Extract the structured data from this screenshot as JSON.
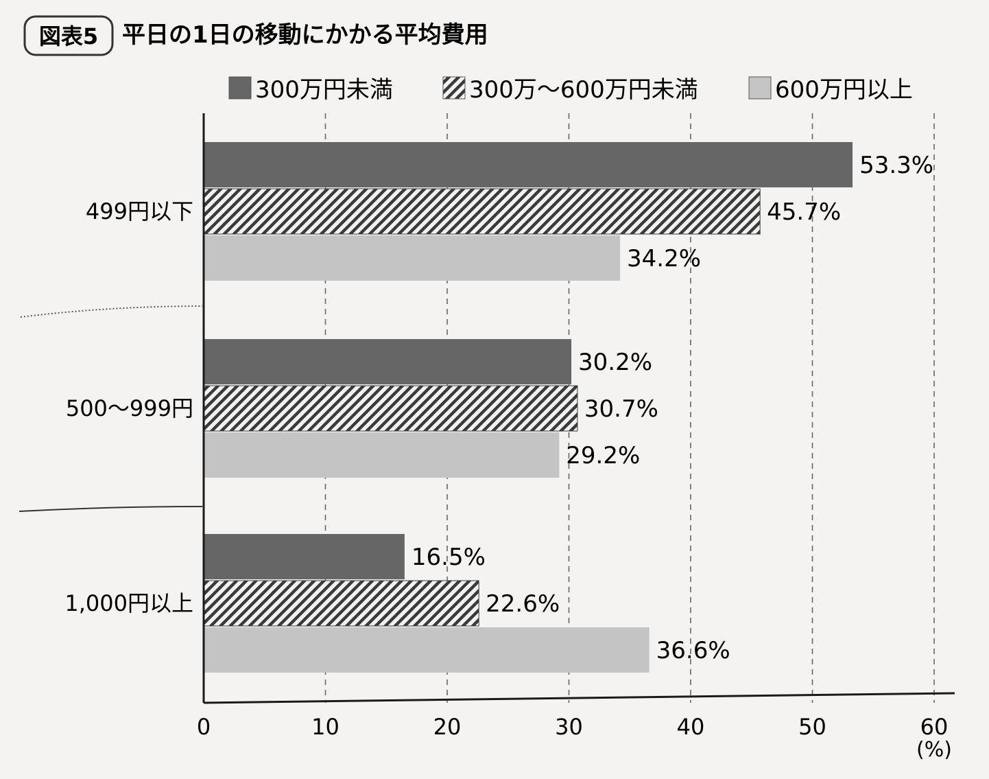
{
  "figure": {
    "badge": "図表5",
    "title": "平日の1日の移動にかかる平均費用"
  },
  "chart_data": {
    "type": "bar",
    "orientation": "horizontal",
    "title": "平日の1日の移動にかかる平均費用",
    "categories": [
      "499円以下",
      "500～999円",
      "1,000円以上"
    ],
    "series": [
      {
        "name": "300万円未満",
        "values": [
          53.3,
          30.2,
          16.5
        ],
        "labels": [
          "53.3%",
          "30.2%",
          "16.5%"
        ],
        "pattern": "solid",
        "color": "#666666"
      },
      {
        "name": "300万～600万円未満",
        "values": [
          45.7,
          30.7,
          22.6
        ],
        "labels": [
          "45.7%",
          "30.7%",
          "22.6%"
        ],
        "pattern": "hatch",
        "color": "#3a3a3a"
      },
      {
        "name": "600万円以上",
        "values": [
          34.2,
          29.2,
          36.6
        ],
        "labels": [
          "34.2%",
          "29.2%",
          "36.6%"
        ],
        "pattern": "light",
        "color": "#c4c4c4"
      }
    ],
    "x_ticks": [
      "0",
      "10",
      "20",
      "30",
      "40",
      "50",
      "60"
    ],
    "x_unit": "(%)",
    "xlim": [
      0,
      60
    ],
    "grid": "vertical-dashed",
    "legend": "top"
  }
}
